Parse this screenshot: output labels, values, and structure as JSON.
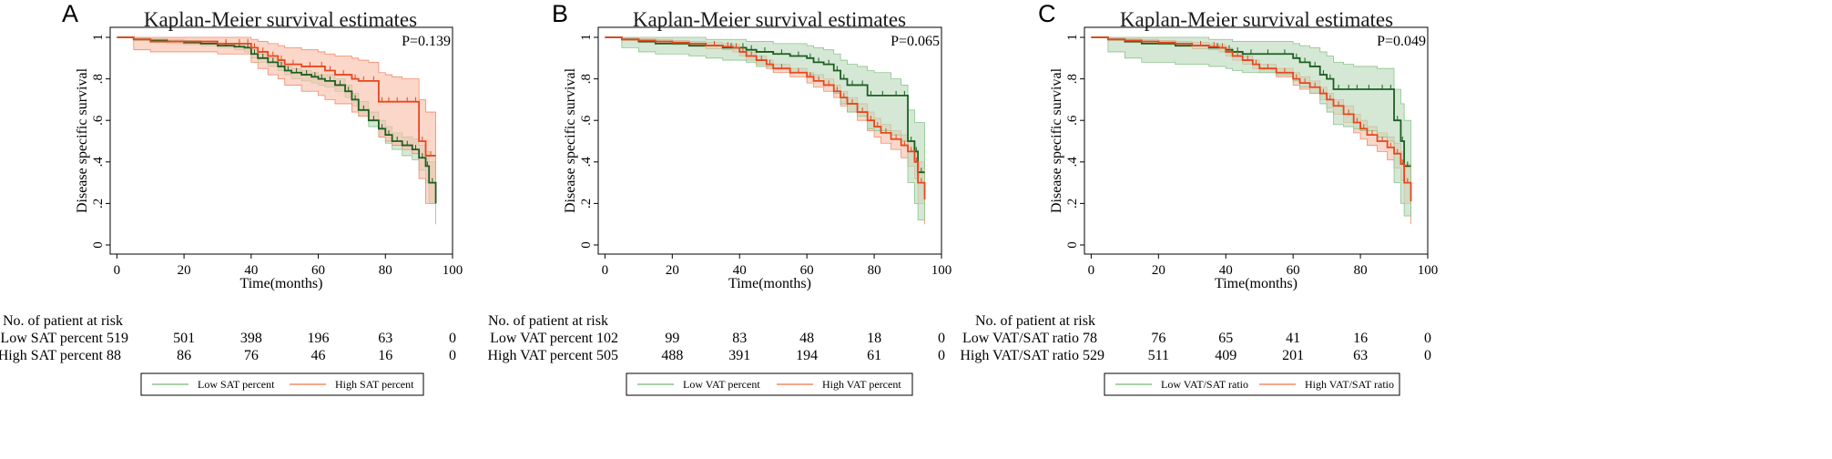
{
  "colors": {
    "low_line": "#1b5e20",
    "low_band": "#bfdcbf",
    "low_band_edge": "#8cc48c",
    "high_line": "#e8471c",
    "high_band": "#f9c2ae",
    "high_band_edge": "#f28b6a",
    "frame": "#000000"
  },
  "panels": [
    {
      "letter": "A",
      "title": "Kaplan-Meier survival estimates",
      "pvalue": "P=0.139",
      "xlabel": "Time(months)",
      "ylabel": "Disease specific survival",
      "x_ticks": [
        "0",
        "20",
        "40",
        "60",
        "80",
        "100"
      ],
      "y_ticks": [
        "0",
        ".2",
        ".4",
        ".6",
        ".8",
        "1"
      ],
      "risk_header": "No. of patient at risk",
      "risk_rows": [
        {
          "label": "Low SAT percent",
          "values": [
            "519",
            "501",
            "398",
            "196",
            "63",
            "0"
          ]
        },
        {
          "label": "High SAT percent",
          "values": [
            "88",
            "86",
            "76",
            "46",
            "16",
            "0"
          ]
        }
      ],
      "legend": [
        "Low SAT percent",
        "High SAT percent"
      ]
    },
    {
      "letter": "B",
      "title": "Kaplan-Meier survival estimates",
      "pvalue": "P=0.065",
      "xlabel": "Time(months)",
      "ylabel": "Disease specific survival",
      "x_ticks": [
        "0",
        "20",
        "40",
        "60",
        "80",
        "100"
      ],
      "y_ticks": [
        "0",
        ".2",
        ".4",
        ".6",
        ".8",
        "1"
      ],
      "risk_header": "No. of patient at risk",
      "risk_rows": [
        {
          "label": "Low VAT percent",
          "values": [
            "102",
            "99",
            "83",
            "48",
            "18",
            "0"
          ]
        },
        {
          "label": "High VAT percent",
          "values": [
            "505",
            "488",
            "391",
            "194",
            "61",
            "0"
          ]
        }
      ],
      "legend": [
        "Low VAT percent",
        "High VAT percent"
      ]
    },
    {
      "letter": "C",
      "title": "Kaplan-Meier survival estimates",
      "pvalue": "P=0.049",
      "xlabel": "Time(months)",
      "ylabel": "Disease specific survival",
      "x_ticks": [
        "0",
        "20",
        "40",
        "60",
        "80",
        "100"
      ],
      "y_ticks": [
        "0",
        ".2",
        ".4",
        ".6",
        ".8",
        "1"
      ],
      "risk_header": "No. of patient at risk",
      "risk_rows": [
        {
          "label": "Low VAT/SAT ratio",
          "values": [
            "78",
            "76",
            "65",
            "41",
            "16",
            "0"
          ]
        },
        {
          "label": "High VAT/SAT ratio",
          "values": [
            "529",
            "511",
            "409",
            "201",
            "63",
            "0"
          ]
        }
      ],
      "legend": [
        "Low VAT/SAT ratio",
        "High VAT/SAT ratio"
      ]
    }
  ],
  "chart_data": [
    {
      "type": "line",
      "title": "Kaplan-Meier survival estimates",
      "xlabel": "Time(months)",
      "ylabel": "Disease specific survival",
      "xlim": [
        -2,
        100
      ],
      "ylim": [
        0,
        1
      ],
      "annotation": "P=0.139",
      "series": [
        {
          "name": "Low SAT percent",
          "role": "low",
          "x": [
            0,
            5,
            10,
            15,
            20,
            25,
            30,
            35,
            38,
            40,
            42,
            45,
            48,
            50,
            52,
            55,
            58,
            60,
            62,
            65,
            68,
            70,
            72,
            75,
            78,
            80,
            82,
            85,
            88,
            90,
            92,
            93,
            95
          ],
          "y": [
            1,
            0.99,
            0.985,
            0.98,
            0.975,
            0.97,
            0.96,
            0.955,
            0.95,
            0.92,
            0.9,
            0.88,
            0.86,
            0.84,
            0.83,
            0.82,
            0.81,
            0.8,
            0.79,
            0.77,
            0.74,
            0.7,
            0.65,
            0.6,
            0.56,
            0.53,
            0.5,
            0.48,
            0.46,
            0.42,
            0.38,
            0.3,
            0.2
          ],
          "ci_low": [
            1,
            0.985,
            0.975,
            0.97,
            0.965,
            0.96,
            0.95,
            0.94,
            0.93,
            0.9,
            0.88,
            0.86,
            0.84,
            0.82,
            0.8,
            0.79,
            0.78,
            0.77,
            0.76,
            0.74,
            0.71,
            0.67,
            0.62,
            0.57,
            0.52,
            0.49,
            0.46,
            0.43,
            0.41,
            0.36,
            0.3,
            0.2,
            0.1
          ],
          "ci_high": [
            1,
            0.997,
            0.993,
            0.99,
            0.985,
            0.98,
            0.97,
            0.965,
            0.96,
            0.94,
            0.92,
            0.9,
            0.88,
            0.86,
            0.85,
            0.84,
            0.83,
            0.82,
            0.82,
            0.8,
            0.77,
            0.73,
            0.69,
            0.64,
            0.6,
            0.57,
            0.54,
            0.52,
            0.51,
            0.48,
            0.45,
            0.4,
            0.35
          ]
        },
        {
          "name": "High SAT percent",
          "role": "high",
          "x": [
            0,
            5,
            10,
            15,
            20,
            25,
            30,
            35,
            38,
            40,
            42,
            45,
            48,
            50,
            55,
            60,
            62,
            65,
            70,
            72,
            75,
            78,
            80,
            82,
            85,
            88,
            90,
            92,
            95
          ],
          "y": [
            1,
            0.99,
            0.98,
            0.98,
            0.98,
            0.98,
            0.97,
            0.97,
            0.97,
            0.95,
            0.93,
            0.91,
            0.89,
            0.87,
            0.86,
            0.86,
            0.84,
            0.82,
            0.8,
            0.79,
            0.79,
            0.69,
            0.69,
            0.69,
            0.69,
            0.69,
            0.5,
            0.43,
            0.43
          ],
          "ci_low": [
            1,
            0.94,
            0.93,
            0.93,
            0.93,
            0.93,
            0.92,
            0.92,
            0.92,
            0.88,
            0.85,
            0.82,
            0.8,
            0.77,
            0.74,
            0.72,
            0.7,
            0.68,
            0.64,
            0.62,
            0.6,
            0.52,
            0.5,
            0.48,
            0.46,
            0.44,
            0.32,
            0.2,
            0.2
          ],
          "ci_high": [
            1,
            1,
            1,
            1,
            1,
            1,
            1,
            1,
            1,
            0.99,
            0.98,
            0.97,
            0.96,
            0.95,
            0.94,
            0.93,
            0.92,
            0.91,
            0.9,
            0.89,
            0.88,
            0.83,
            0.82,
            0.81,
            0.8,
            0.8,
            0.7,
            0.64,
            0.64
          ]
        }
      ]
    },
    {
      "type": "line",
      "title": "Kaplan-Meier survival estimates",
      "xlabel": "Time(months)",
      "ylabel": "Disease specific survival",
      "xlim": [
        -2,
        100
      ],
      "ylim": [
        0,
        1
      ],
      "annotation": "P=0.065",
      "series": [
        {
          "name": "Low VAT percent",
          "role": "low",
          "x": [
            0,
            5,
            10,
            15,
            20,
            25,
            30,
            35,
            40,
            42,
            45,
            50,
            55,
            60,
            62,
            65,
            68,
            70,
            72,
            75,
            78,
            80,
            85,
            88,
            90,
            92,
            93,
            95
          ],
          "y": [
            1,
            0.99,
            0.98,
            0.97,
            0.97,
            0.96,
            0.96,
            0.95,
            0.95,
            0.94,
            0.93,
            0.92,
            0.91,
            0.9,
            0.88,
            0.87,
            0.84,
            0.8,
            0.77,
            0.77,
            0.72,
            0.72,
            0.72,
            0.72,
            0.5,
            0.45,
            0.35,
            0.35
          ],
          "ci_low": [
            1,
            0.95,
            0.93,
            0.92,
            0.92,
            0.91,
            0.9,
            0.89,
            0.89,
            0.88,
            0.86,
            0.85,
            0.83,
            0.82,
            0.79,
            0.77,
            0.73,
            0.68,
            0.64,
            0.62,
            0.56,
            0.55,
            0.53,
            0.5,
            0.3,
            0.2,
            0.12,
            0.12
          ],
          "ci_high": [
            1,
            1,
            1,
            1,
            1,
            1,
            0.99,
            0.99,
            0.99,
            0.98,
            0.98,
            0.97,
            0.97,
            0.96,
            0.95,
            0.94,
            0.92,
            0.89,
            0.87,
            0.86,
            0.84,
            0.83,
            0.8,
            0.77,
            0.65,
            0.59,
            0.59,
            0.59
          ]
        },
        {
          "name": "High VAT percent",
          "role": "high",
          "x": [
            0,
            5,
            10,
            15,
            20,
            25,
            30,
            35,
            38,
            40,
            42,
            45,
            48,
            50,
            55,
            60,
            62,
            65,
            68,
            70,
            72,
            75,
            78,
            80,
            82,
            85,
            88,
            90,
            92,
            93,
            95
          ],
          "y": [
            1,
            0.99,
            0.985,
            0.98,
            0.975,
            0.97,
            0.96,
            0.955,
            0.95,
            0.93,
            0.91,
            0.89,
            0.87,
            0.85,
            0.83,
            0.81,
            0.79,
            0.77,
            0.74,
            0.71,
            0.68,
            0.64,
            0.6,
            0.57,
            0.54,
            0.51,
            0.48,
            0.45,
            0.4,
            0.3,
            0.22
          ],
          "ci_low": [
            1,
            0.985,
            0.975,
            0.97,
            0.965,
            0.955,
            0.945,
            0.94,
            0.93,
            0.91,
            0.89,
            0.87,
            0.85,
            0.83,
            0.81,
            0.78,
            0.76,
            0.74,
            0.71,
            0.67,
            0.64,
            0.6,
            0.55,
            0.52,
            0.49,
            0.46,
            0.42,
            0.38,
            0.32,
            0.2,
            0.1
          ],
          "ci_high": [
            1,
            0.997,
            0.993,
            0.99,
            0.985,
            0.98,
            0.975,
            0.97,
            0.965,
            0.95,
            0.93,
            0.91,
            0.89,
            0.87,
            0.85,
            0.83,
            0.82,
            0.8,
            0.77,
            0.74,
            0.71,
            0.68,
            0.64,
            0.61,
            0.58,
            0.55,
            0.53,
            0.5,
            0.46,
            0.4,
            0.33
          ]
        }
      ]
    },
    {
      "type": "line",
      "title": "Kaplan-Meier survival estimates",
      "xlabel": "Time(months)",
      "ylabel": "Disease specific survival",
      "xlim": [
        -2,
        100
      ],
      "ylim": [
        0,
        1
      ],
      "annotation": "P=0.049",
      "series": [
        {
          "name": "Low VAT/SAT ratio",
          "role": "low",
          "x": [
            0,
            5,
            10,
            15,
            20,
            25,
            30,
            35,
            40,
            42,
            45,
            50,
            55,
            60,
            62,
            65,
            68,
            70,
            72,
            75,
            78,
            80,
            85,
            88,
            90,
            92,
            93,
            95
          ],
          "y": [
            1,
            0.99,
            0.98,
            0.97,
            0.97,
            0.96,
            0.96,
            0.95,
            0.94,
            0.93,
            0.92,
            0.92,
            0.92,
            0.9,
            0.88,
            0.86,
            0.82,
            0.8,
            0.75,
            0.75,
            0.75,
            0.75,
            0.75,
            0.75,
            0.6,
            0.5,
            0.38,
            0.38
          ],
          "ci_low": [
            1,
            0.93,
            0.9,
            0.88,
            0.88,
            0.87,
            0.87,
            0.86,
            0.85,
            0.84,
            0.83,
            0.83,
            0.82,
            0.79,
            0.76,
            0.73,
            0.68,
            0.64,
            0.58,
            0.57,
            0.56,
            0.55,
            0.52,
            0.5,
            0.3,
            0.2,
            0.14,
            0.14
          ],
          "ci_high": [
            1,
            1,
            1,
            1,
            1,
            1,
            1,
            0.99,
            0.99,
            0.98,
            0.98,
            0.98,
            0.98,
            0.97,
            0.96,
            0.95,
            0.93,
            0.91,
            0.88,
            0.87,
            0.86,
            0.86,
            0.85,
            0.85,
            0.75,
            0.68,
            0.6,
            0.6
          ]
        },
        {
          "name": "High VAT/SAT ratio",
          "role": "high",
          "x": [
            0,
            5,
            10,
            15,
            20,
            25,
            30,
            35,
            38,
            40,
            42,
            45,
            48,
            50,
            55,
            60,
            62,
            65,
            68,
            70,
            72,
            75,
            78,
            80,
            82,
            85,
            88,
            90,
            92,
            93,
            95
          ],
          "y": [
            1,
            0.99,
            0.985,
            0.98,
            0.975,
            0.97,
            0.96,
            0.955,
            0.95,
            0.93,
            0.91,
            0.89,
            0.87,
            0.85,
            0.83,
            0.8,
            0.78,
            0.76,
            0.73,
            0.7,
            0.67,
            0.63,
            0.59,
            0.56,
            0.53,
            0.5,
            0.47,
            0.44,
            0.39,
            0.3,
            0.21
          ],
          "ci_low": [
            1,
            0.985,
            0.975,
            0.97,
            0.965,
            0.955,
            0.945,
            0.94,
            0.93,
            0.91,
            0.89,
            0.87,
            0.85,
            0.83,
            0.81,
            0.77,
            0.75,
            0.73,
            0.7,
            0.66,
            0.63,
            0.59,
            0.54,
            0.51,
            0.48,
            0.45,
            0.41,
            0.37,
            0.31,
            0.2,
            0.1
          ],
          "ci_high": [
            1,
            0.997,
            0.993,
            0.99,
            0.985,
            0.98,
            0.975,
            0.97,
            0.965,
            0.95,
            0.93,
            0.91,
            0.89,
            0.87,
            0.85,
            0.83,
            0.81,
            0.79,
            0.76,
            0.73,
            0.7,
            0.67,
            0.63,
            0.6,
            0.57,
            0.54,
            0.52,
            0.49,
            0.45,
            0.39,
            0.32
          ]
        }
      ]
    }
  ]
}
